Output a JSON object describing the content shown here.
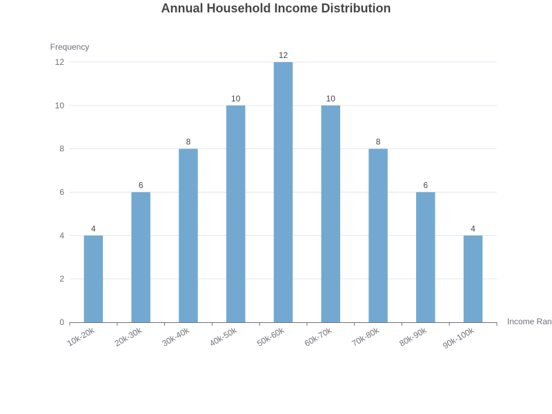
{
  "chart_data": {
    "type": "bar",
    "title": "Annual Household Income Distribution",
    "xlabel": "Income Range",
    "ylabel": "Frequency",
    "categories": [
      "10k-20k",
      "20k-30k",
      "30k-40k",
      "40k-50k",
      "50k-60k",
      "60k-70k",
      "70k-80k",
      "80k-90k",
      "90k-100k"
    ],
    "values": [
      4,
      6,
      8,
      10,
      12,
      10,
      8,
      6,
      4
    ],
    "ylim": [
      0,
      12
    ],
    "yticks": [
      0,
      2,
      4,
      6,
      8,
      10,
      12
    ],
    "show_data_labels": true,
    "grid": true,
    "bar_color": "#73a9d0"
  }
}
